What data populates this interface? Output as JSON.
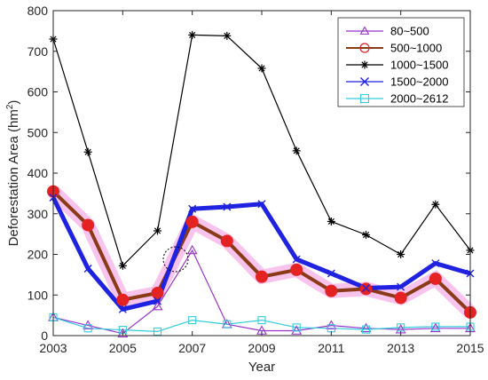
{
  "chart_data": {
    "type": "line",
    "xlabel": "Year",
    "ylabel": "Deforestation Area (hm",
    "ylabel_sup": "2",
    "ylabel_close": ")",
    "xlim": [
      2003,
      2015
    ],
    "ylim": [
      0,
      800
    ],
    "xticks": [
      "2003",
      "2005",
      "2007",
      "2009",
      "2011",
      "2013",
      "2015"
    ],
    "yticks": [
      "0",
      "100",
      "200",
      "300",
      "400",
      "500",
      "600",
      "700",
      "800"
    ],
    "grid": false,
    "legend_position": "top-right",
    "x": [
      2003,
      2004,
      2005,
      2006,
      2007,
      2008,
      2009,
      2010,
      2011,
      2012,
      2013,
      2014,
      2015
    ],
    "series": [
      {
        "name": "80~500",
        "color": "#9933cc",
        "marker": "triangle",
        "values": [
          45,
          25,
          5,
          72,
          210,
          28,
          12,
          12,
          25,
          18,
          15,
          18,
          18
        ]
      },
      {
        "name": "500~1000",
        "color": "#e52222",
        "marker": "circle",
        "values": [
          355,
          272,
          88,
          105,
          280,
          233,
          145,
          162,
          110,
          115,
          93,
          140,
          57
        ]
      },
      {
        "name": "1000~1500",
        "color": "#000000",
        "marker": "asterisk",
        "values": [
          730,
          452,
          172,
          258,
          740,
          738,
          658,
          455,
          281,
          248,
          200,
          323,
          210
        ]
      },
      {
        "name": "1500~2000",
        "color": "#1f22e0",
        "marker": "x",
        "values": [
          340,
          165,
          65,
          85,
          312,
          317,
          324,
          188,
          153,
          117,
          120,
          178,
          153
        ]
      },
      {
        "name": "2000~2612",
        "color": "#33ccdd",
        "marker": "square",
        "values": [
          45,
          18,
          14,
          10,
          38,
          28,
          38,
          20,
          18,
          15,
          20,
          22,
          22
        ]
      }
    ]
  }
}
